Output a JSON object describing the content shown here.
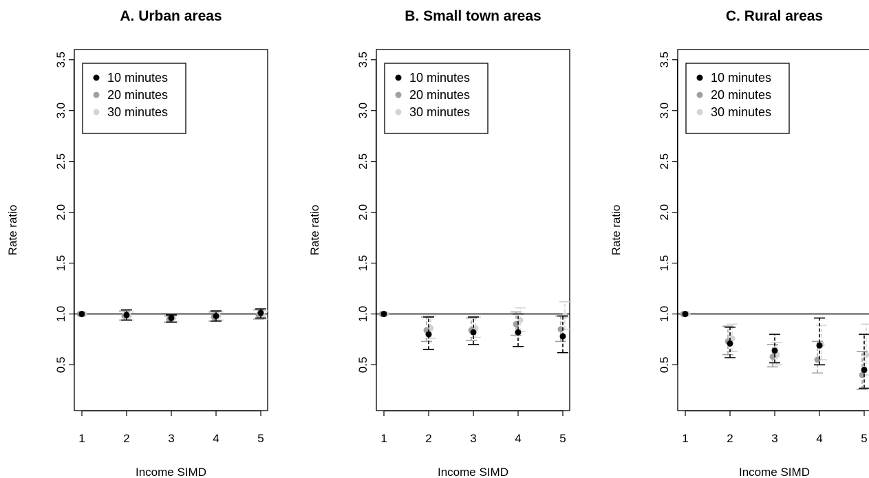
{
  "chart_data": [
    {
      "type": "scatter",
      "title": "A. Urban areas",
      "xlabel": "Income SIMD",
      "ylabel": "Rate ratio",
      "x": [
        1,
        2,
        3,
        4,
        5
      ],
      "xticks": [
        "1",
        "2",
        "3",
        "4",
        "5"
      ],
      "yticks": [
        "0.5",
        "1.0",
        "1.5",
        "2.0",
        "2.5",
        "3.0",
        "3.5"
      ],
      "ylim": [
        0.05,
        3.6
      ],
      "reference_line": 1.0,
      "legend_position": "top-left",
      "series": [
        {
          "name": "10 minutes",
          "color": "#000000",
          "points": [
            {
              "x": 1,
              "y": 1.0
            },
            {
              "x": 2,
              "y": 0.99,
              "lo": 0.94,
              "hi": 1.04
            },
            {
              "x": 3,
              "y": 0.96,
              "lo": 0.92,
              "hi": 0.99
            },
            {
              "x": 4,
              "y": 0.98,
              "lo": 0.93,
              "hi": 1.03
            },
            {
              "x": 5,
              "y": 1.01,
              "lo": 0.96,
              "hi": 1.05
            }
          ]
        },
        {
          "name": "20 minutes",
          "color": "#a0a0a0",
          "points": [
            {
              "x": 1,
              "y": 1.0
            },
            {
              "x": 2,
              "y": 0.98,
              "lo": 0.94,
              "hi": 1.03
            },
            {
              "x": 3,
              "y": 0.95,
              "lo": 0.92,
              "hi": 0.98
            },
            {
              "x": 4,
              "y": 0.97,
              "lo": 0.93,
              "hi": 1.02
            },
            {
              "x": 5,
              "y": 0.99,
              "lo": 0.95,
              "hi": 1.04
            }
          ]
        },
        {
          "name": "30 minutes",
          "color": "#d3d3d3",
          "points": [
            {
              "x": 1,
              "y": 1.0
            },
            {
              "x": 2,
              "y": 0.98,
              "lo": 0.94,
              "hi": 1.02
            },
            {
              "x": 3,
              "y": 0.96,
              "lo": 0.92,
              "hi": 0.99
            },
            {
              "x": 4,
              "y": 0.98,
              "lo": 0.94,
              "hi": 1.02
            },
            {
              "x": 5,
              "y": 0.98,
              "lo": 0.95,
              "hi": 1.03
            }
          ]
        }
      ]
    },
    {
      "type": "scatter",
      "title": "B. Small town areas",
      "xlabel": "Income SIMD",
      "ylabel": "Rate ratio",
      "x": [
        1,
        2,
        3,
        4,
        5
      ],
      "xticks": [
        "1",
        "2",
        "3",
        "4",
        "5"
      ],
      "yticks": [
        "0.5",
        "1.0",
        "1.5",
        "2.0",
        "2.5",
        "3.0",
        "3.5"
      ],
      "ylim": [
        0.05,
        3.6
      ],
      "reference_line": 1.0,
      "legend_position": "top-left",
      "series": [
        {
          "name": "10 minutes",
          "color": "#000000",
          "points": [
            {
              "x": 1,
              "y": 1.0
            },
            {
              "x": 2,
              "y": 0.8,
              "lo": 0.65,
              "hi": 0.97
            },
            {
              "x": 3,
              "y": 0.82,
              "lo": 0.7,
              "hi": 0.97
            },
            {
              "x": 4,
              "y": 0.82,
              "lo": 0.68,
              "hi": 1.0
            },
            {
              "x": 5,
              "y": 0.78,
              "lo": 0.62,
              "hi": 0.98
            }
          ]
        },
        {
          "name": "20 minutes",
          "color": "#a0a0a0",
          "points": [
            {
              "x": 1,
              "y": 1.0
            },
            {
              "x": 2,
              "y": 0.84,
              "lo": 0.73,
              "hi": 0.97
            },
            {
              "x": 3,
              "y": 0.84,
              "lo": 0.74,
              "hi": 0.96
            },
            {
              "x": 4,
              "y": 0.9,
              "lo": 0.79,
              "hi": 1.02
            },
            {
              "x": 5,
              "y": 0.85,
              "lo": 0.73,
              "hi": 0.98
            }
          ]
        },
        {
          "name": "30 minutes",
          "color": "#d3d3d3",
          "points": [
            {
              "x": 1,
              "y": 1.0
            },
            {
              "x": 2,
              "y": 0.86,
              "lo": 0.76,
              "hi": 0.98
            },
            {
              "x": 3,
              "y": 0.86,
              "lo": 0.77,
              "hi": 0.97
            },
            {
              "x": 4,
              "y": 0.94,
              "lo": 0.83,
              "hi": 1.06
            },
            {
              "x": 5,
              "y": 0.98,
              "lo": 0.85,
              "hi": 1.12
            }
          ]
        }
      ]
    },
    {
      "type": "scatter",
      "title": "C. Rural areas",
      "xlabel": "Income SIMD",
      "ylabel": "Rate ratio",
      "x": [
        1,
        2,
        3,
        4,
        5
      ],
      "xticks": [
        "1",
        "2",
        "3",
        "4",
        "5"
      ],
      "yticks": [
        "0.5",
        "1.0",
        "1.5",
        "2.0",
        "2.5",
        "3.0",
        "3.5"
      ],
      "ylim": [
        0.05,
        3.6
      ],
      "reference_line": 1.0,
      "legend_position": "top-left",
      "series": [
        {
          "name": "10 minutes",
          "color": "#000000",
          "points": [
            {
              "x": 1,
              "y": 1.0
            },
            {
              "x": 2,
              "y": 0.71,
              "lo": 0.57,
              "hi": 0.87
            },
            {
              "x": 3,
              "y": 0.64,
              "lo": 0.52,
              "hi": 0.8
            },
            {
              "x": 4,
              "y": 0.69,
              "lo": 0.5,
              "hi": 0.96
            },
            {
              "x": 5,
              "y": 0.45,
              "lo": 0.27,
              "hi": 0.8
            }
          ]
        },
        {
          "name": "20 minutes",
          "color": "#a0a0a0",
          "points": [
            {
              "x": 1,
              "y": 1.0
            },
            {
              "x": 2,
              "y": 0.73,
              "lo": 0.6,
              "hi": 0.88
            },
            {
              "x": 3,
              "y": 0.58,
              "lo": 0.48,
              "hi": 0.7
            },
            {
              "x": 4,
              "y": 0.55,
              "lo": 0.42,
              "hi": 0.73
            },
            {
              "x": 5,
              "y": 0.4,
              "lo": 0.26,
              "hi": 0.63
            }
          ]
        },
        {
          "name": "30 minutes",
          "color": "#d3d3d3",
          "points": [
            {
              "x": 1,
              "y": 1.0
            },
            {
              "x": 2,
              "y": 0.76,
              "lo": 0.63,
              "hi": 0.9
            },
            {
              "x": 3,
              "y": 0.6,
              "lo": 0.5,
              "hi": 0.72
            },
            {
              "x": 4,
              "y": 0.7,
              "lo": 0.55,
              "hi": 0.89
            },
            {
              "x": 5,
              "y": 0.6,
              "lo": 0.4,
              "hi": 0.9
            }
          ]
        }
      ]
    }
  ]
}
